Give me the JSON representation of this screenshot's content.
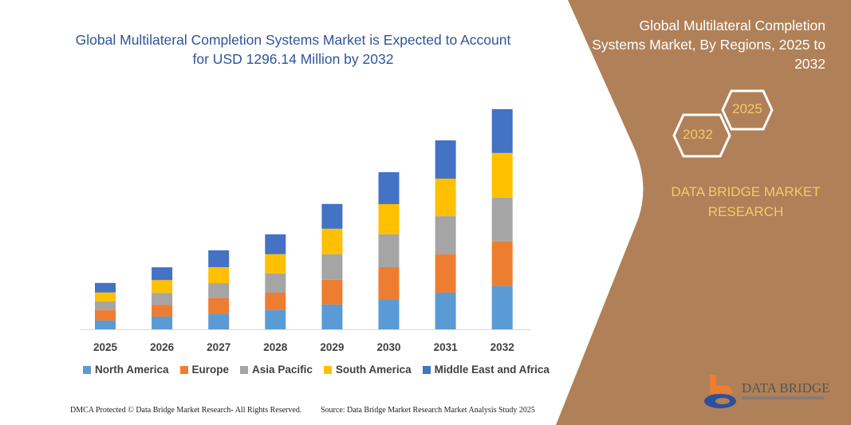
{
  "title": "Global Multilateral Completion Systems Market is Expected to Account for USD 1296.14 Million by 2032",
  "side_panel": {
    "title": "Global Multilateral Completion Systems Market, By Regions, 2025 to 2032",
    "hex_start": "2025",
    "hex_end": "2032",
    "brand": "DATA BRIDGE MARKET RESEARCH",
    "logo_text": "DATA BRIDGE",
    "background_color": "#B08058"
  },
  "footer": {
    "left": "DMCA Protected © Data Bridge Market Research- All Rights Reserved.",
    "right": "Source: Data Bridge Market Research  Market Analysis Study 2025"
  },
  "chart_data": {
    "type": "bar",
    "stacked": true,
    "categories": [
      "2025",
      "2026",
      "2027",
      "2028",
      "2029",
      "2030",
      "2031",
      "2032"
    ],
    "series": [
      {
        "name": "North America",
        "color": "#5B9BD5",
        "values": [
          52,
          75,
          89,
          113,
          146,
          178,
          216,
          254
        ]
      },
      {
        "name": "Europe",
        "color": "#ED7D31",
        "values": [
          61,
          70,
          94,
          103,
          146,
          188,
          225,
          263
        ]
      },
      {
        "name": "Asia Pacific",
        "color": "#A5A5A5",
        "values": [
          52,
          70,
          89,
          113,
          150,
          193,
          225,
          258
        ]
      },
      {
        "name": "South America",
        "color": "#FFC000",
        "values": [
          52,
          75,
          94,
          113,
          150,
          178,
          221,
          263
        ]
      },
      {
        "name": "Middle East and Africa",
        "color": "#4472C4",
        "values": [
          56,
          75,
          99,
          117,
          146,
          188,
          225,
          258
        ]
      }
    ],
    "ylim": [
      0,
      1300
    ],
    "grid": false,
    "legend_position": "bottom"
  }
}
